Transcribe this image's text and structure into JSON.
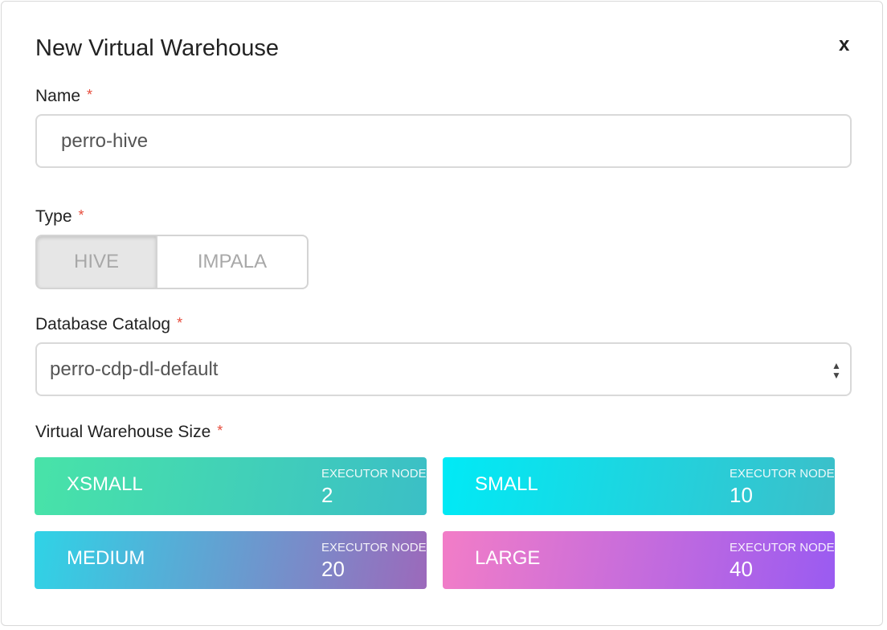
{
  "dialog": {
    "title": "New Virtual Warehouse",
    "close": "x",
    "name_field": {
      "label": "Name",
      "marker": "*",
      "value": "perro-hive"
    },
    "type_field": {
      "label": "Type",
      "marker": "*",
      "options": [
        "HIVE",
        "IMPALA"
      ]
    },
    "catalog_field": {
      "label": "Database Catalog",
      "marker": "*",
      "value": "perro-cdp-dl-default"
    },
    "size_field": {
      "label": "Virtual Warehouse Size",
      "marker": "*",
      "sizes": [
        {
          "name": "XSMALL",
          "nodes_label": "EXECUTOR NODES",
          "nodes": 2
        },
        {
          "name": "SMALL",
          "nodes_label": "EXECUTOR NODES",
          "nodes": 10
        },
        {
          "name": "MEDIUM",
          "nodes_label": "EXECUTOR NODES",
          "nodes": 20
        },
        {
          "name": "LARGE",
          "nodes_label": "EXECUTOR NODES",
          "nodes": 40
        }
      ]
    }
  }
}
